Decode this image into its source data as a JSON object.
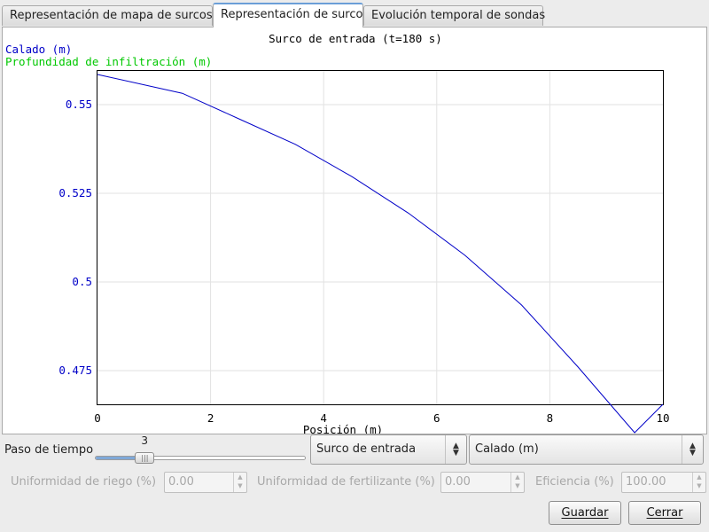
{
  "tabs": [
    {
      "label": "Representación de mapa de surcos"
    },
    {
      "label": "Representación de surco"
    },
    {
      "label": "Evolución temporal de sondas"
    }
  ],
  "chart": {
    "title": "Surco de entrada (t=180 s)",
    "legend": [
      {
        "name": "Calado (m)",
        "color": "#0000c8"
      },
      {
        "name": "Profundidad de infiltración (m)",
        "color": "#00c800"
      }
    ],
    "xlabel": "Posición (m)",
    "x_ticks": [
      "0",
      "2",
      "4",
      "6",
      "8",
      "10"
    ],
    "y_ticks": [
      "0.55",
      "0.525",
      "0.5",
      "0.475"
    ]
  },
  "chart_data": {
    "type": "line",
    "title": "Surco de entrada (t=180 s)",
    "xlabel": "Posición (m)",
    "ylabel": "",
    "xlim": [
      0,
      10
    ],
    "ylim": [
      0.4655,
      0.5595
    ],
    "x_ticks": [
      0,
      2,
      4,
      6,
      8,
      10
    ],
    "y_ticks": [
      0.475,
      0.5,
      0.525,
      0.55
    ],
    "grid": true,
    "series": [
      {
        "name": "Calado (m)",
        "color": "#0000c8",
        "x": [
          0,
          1.5,
          2.5,
          3.5,
          4.5,
          5.5,
          6.5,
          7.5,
          8.5,
          9.5,
          10
        ],
        "y": [
          0.5585,
          0.5532,
          0.546,
          0.5388,
          0.5297,
          0.5194,
          0.5075,
          0.4935,
          0.476,
          0.4575,
          0.4655
        ]
      },
      {
        "name": "Profundidad de infiltración (m)",
        "color": "#00c800",
        "x": [],
        "y": []
      }
    ]
  },
  "controls": {
    "time_step_label": "Paso de tiempo",
    "time_step_value": "3",
    "time_step_fraction": 0.21,
    "furrow_select": "Surco de entrada",
    "variable_select": "Calado (m)"
  },
  "metrics": {
    "irrigation_uniformity_label": "Uniformidad de riego (%)",
    "irrigation_uniformity_value": "0.00",
    "fertilizer_uniformity_label": "Uniformidad de fertilizante (%)",
    "fertilizer_uniformity_value": "0.00",
    "efficiency_label": "Eficiencia (%)",
    "efficiency_value": "100.00"
  },
  "buttons": {
    "save": "Guardar",
    "close": "Cerrar"
  }
}
